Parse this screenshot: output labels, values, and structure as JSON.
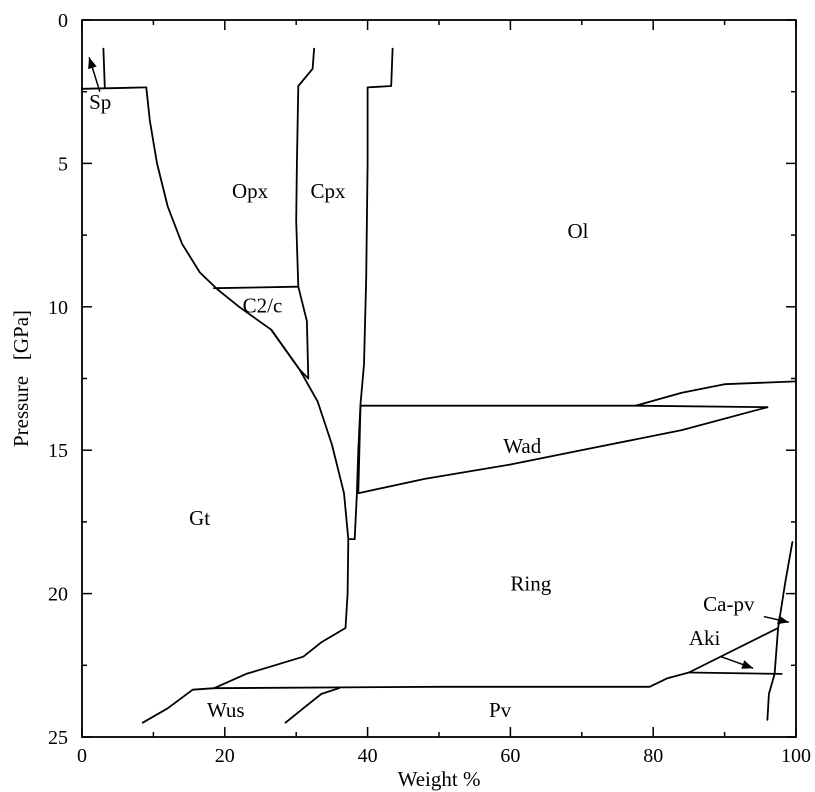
{
  "chart_data": {
    "type": "line",
    "title": "",
    "xlabel": "Weight %",
    "ylabel": "Pressure   [GPa]",
    "xlim": [
      0,
      100
    ],
    "ylim": [
      25,
      0
    ],
    "y_inverted": true,
    "grid": false,
    "legend": "none",
    "x_ticks": [
      0,
      20,
      40,
      60,
      80,
      100
    ],
    "x_tick_labels": [
      "0",
      "20",
      "40",
      "60",
      "80",
      "100"
    ],
    "y_ticks": [
      0,
      5,
      10,
      15,
      20,
      25
    ],
    "y_tick_labels": [
      "0",
      "5",
      "10",
      "15",
      "20",
      "25"
    ],
    "regions": [
      {
        "name": "Sp",
        "x": 1,
        "y": 3.1
      },
      {
        "name": "Opx",
        "x": 21,
        "y": 6.2
      },
      {
        "name": "Cpx",
        "x": 32,
        "y": 6.2
      },
      {
        "name": "Ol",
        "x": 68,
        "y": 7.6
      },
      {
        "name": "C2/c",
        "x": 22.5,
        "y": 10.2
      },
      {
        "name": "Wad",
        "x": 59,
        "y": 15.1
      },
      {
        "name": "Gt",
        "x": 15,
        "y": 17.6
      },
      {
        "name": "Ring",
        "x": 60,
        "y": 19.9
      },
      {
        "name": "Ca-pv",
        "x": 87,
        "y": 20.6
      },
      {
        "name": "Aki",
        "x": 85,
        "y": 21.8
      },
      {
        "name": "Wus",
        "x": 17.5,
        "y": 24.3
      },
      {
        "name": "Pv",
        "x": 57,
        "y": 24.3
      }
    ],
    "arrows": [
      {
        "label": "Sp",
        "from": [
          2.5,
          2.5
        ],
        "to": [
          1,
          1.3
        ]
      },
      {
        "label": "Ca-pv",
        "from": [
          95.5,
          20.8
        ],
        "to": [
          99,
          21
        ]
      },
      {
        "label": "Aki",
        "from": [
          89.5,
          22.2
        ],
        "to": [
          94,
          22.6
        ]
      }
    ],
    "boundaries": [
      {
        "name": "sp-left-vertical",
        "points": [
          [
            3,
            1
          ],
          [
            3.2,
            2.35
          ]
        ]
      },
      {
        "name": "sp-gt-horizontal",
        "points": [
          [
            0,
            2.4
          ],
          [
            9,
            2.35
          ]
        ]
      },
      {
        "name": "opx-gt",
        "points": [
          [
            9,
            2.35
          ],
          [
            9.5,
            3.5
          ],
          [
            10.5,
            5
          ],
          [
            12,
            6.5
          ],
          [
            14,
            7.8
          ],
          [
            16.5,
            8.8
          ],
          [
            19,
            9.4
          ],
          [
            22,
            10
          ],
          [
            26.5,
            10.8
          ],
          [
            30.5,
            12.2
          ],
          [
            33,
            13.3
          ],
          [
            35,
            14.8
          ],
          [
            36.7,
            16.5
          ],
          [
            37.3,
            18.1
          ]
        ]
      },
      {
        "name": "opx-cpx",
        "points": [
          [
            32.5,
            1
          ],
          [
            32.3,
            1.7
          ],
          [
            30.3,
            2.3
          ],
          [
            30.1,
            5
          ],
          [
            30,
            7
          ],
          [
            30.3,
            9.3
          ],
          [
            31.5,
            10.5
          ],
          [
            31.7,
            12.5
          ]
        ]
      },
      {
        "name": "c2c-top",
        "points": [
          [
            18.5,
            9.35
          ],
          [
            30.3,
            9.3
          ]
        ]
      },
      {
        "name": "c2c-lower-left",
        "points": [
          [
            26.5,
            10.8
          ],
          [
            30.5,
            12.2
          ],
          [
            31.7,
            12.5
          ]
        ]
      },
      {
        "name": "cpx-ol",
        "points": [
          [
            43.5,
            1
          ],
          [
            43.3,
            2.3
          ],
          [
            40,
            2.35
          ],
          [
            40,
            5
          ],
          [
            39.8,
            9
          ],
          [
            39.5,
            12
          ],
          [
            39,
            13.4
          ],
          [
            38.7,
            15
          ],
          [
            38.5,
            16.5
          ],
          [
            38.2,
            18.1
          ]
        ]
      },
      {
        "name": "cpx-bottom",
        "points": [
          [
            37.3,
            18.1
          ],
          [
            38.2,
            18.1
          ]
        ]
      },
      {
        "name": "gt-ring",
        "points": [
          [
            37.3,
            18.1
          ],
          [
            37.2,
            20
          ],
          [
            36.9,
            21.2
          ],
          [
            33.5,
            21.7
          ],
          [
            31,
            22.2
          ],
          [
            27,
            22.5
          ],
          [
            23,
            22.8
          ],
          [
            18.5,
            23.3
          ]
        ]
      },
      {
        "name": "wad-top",
        "points": [
          [
            39,
            13.45
          ],
          [
            77.5,
            13.45
          ],
          [
            96,
            13.5
          ]
        ]
      },
      {
        "name": "wad-ol-tail",
        "points": [
          [
            77.5,
            13.45
          ],
          [
            84,
            13
          ],
          [
            90,
            12.7
          ],
          [
            100,
            12.6
          ]
        ]
      },
      {
        "name": "wad-bottom",
        "points": [
          [
            38.7,
            16.5
          ],
          [
            48,
            16
          ],
          [
            60,
            15.5
          ],
          [
            72,
            14.9
          ],
          [
            84,
            14.3
          ],
          [
            96,
            13.5
          ]
        ]
      },
      {
        "name": "wad-left",
        "points": [
          [
            39,
            13.45
          ],
          [
            38.7,
            16.5
          ]
        ]
      },
      {
        "name": "pv-top",
        "points": [
          [
            18.5,
            23.3
          ],
          [
            50,
            23.25
          ],
          [
            79.5,
            23.25
          ],
          [
            82,
            22.95
          ],
          [
            85,
            22.75
          ],
          [
            97.5,
            21.2
          ]
        ]
      },
      {
        "name": "wus-left",
        "points": [
          [
            8.5,
            24.5
          ],
          [
            12,
            24
          ],
          [
            15.5,
            23.35
          ],
          [
            18.5,
            23.3
          ]
        ]
      },
      {
        "name": "wus-pv",
        "points": [
          [
            28.5,
            24.5
          ],
          [
            31,
            24
          ],
          [
            33.5,
            23.5
          ],
          [
            36,
            23.3
          ]
        ]
      },
      {
        "name": "aki-bottom",
        "points": [
          [
            85,
            22.75
          ],
          [
            98,
            22.8
          ]
        ]
      },
      {
        "name": "ca-pv-boundary",
        "points": [
          [
            96,
            24.4
          ],
          [
            96.2,
            23.5
          ],
          [
            97,
            22.8
          ],
          [
            97.5,
            21.2
          ],
          [
            98.5,
            19.6
          ],
          [
            99.5,
            18.2
          ]
        ]
      }
    ]
  }
}
